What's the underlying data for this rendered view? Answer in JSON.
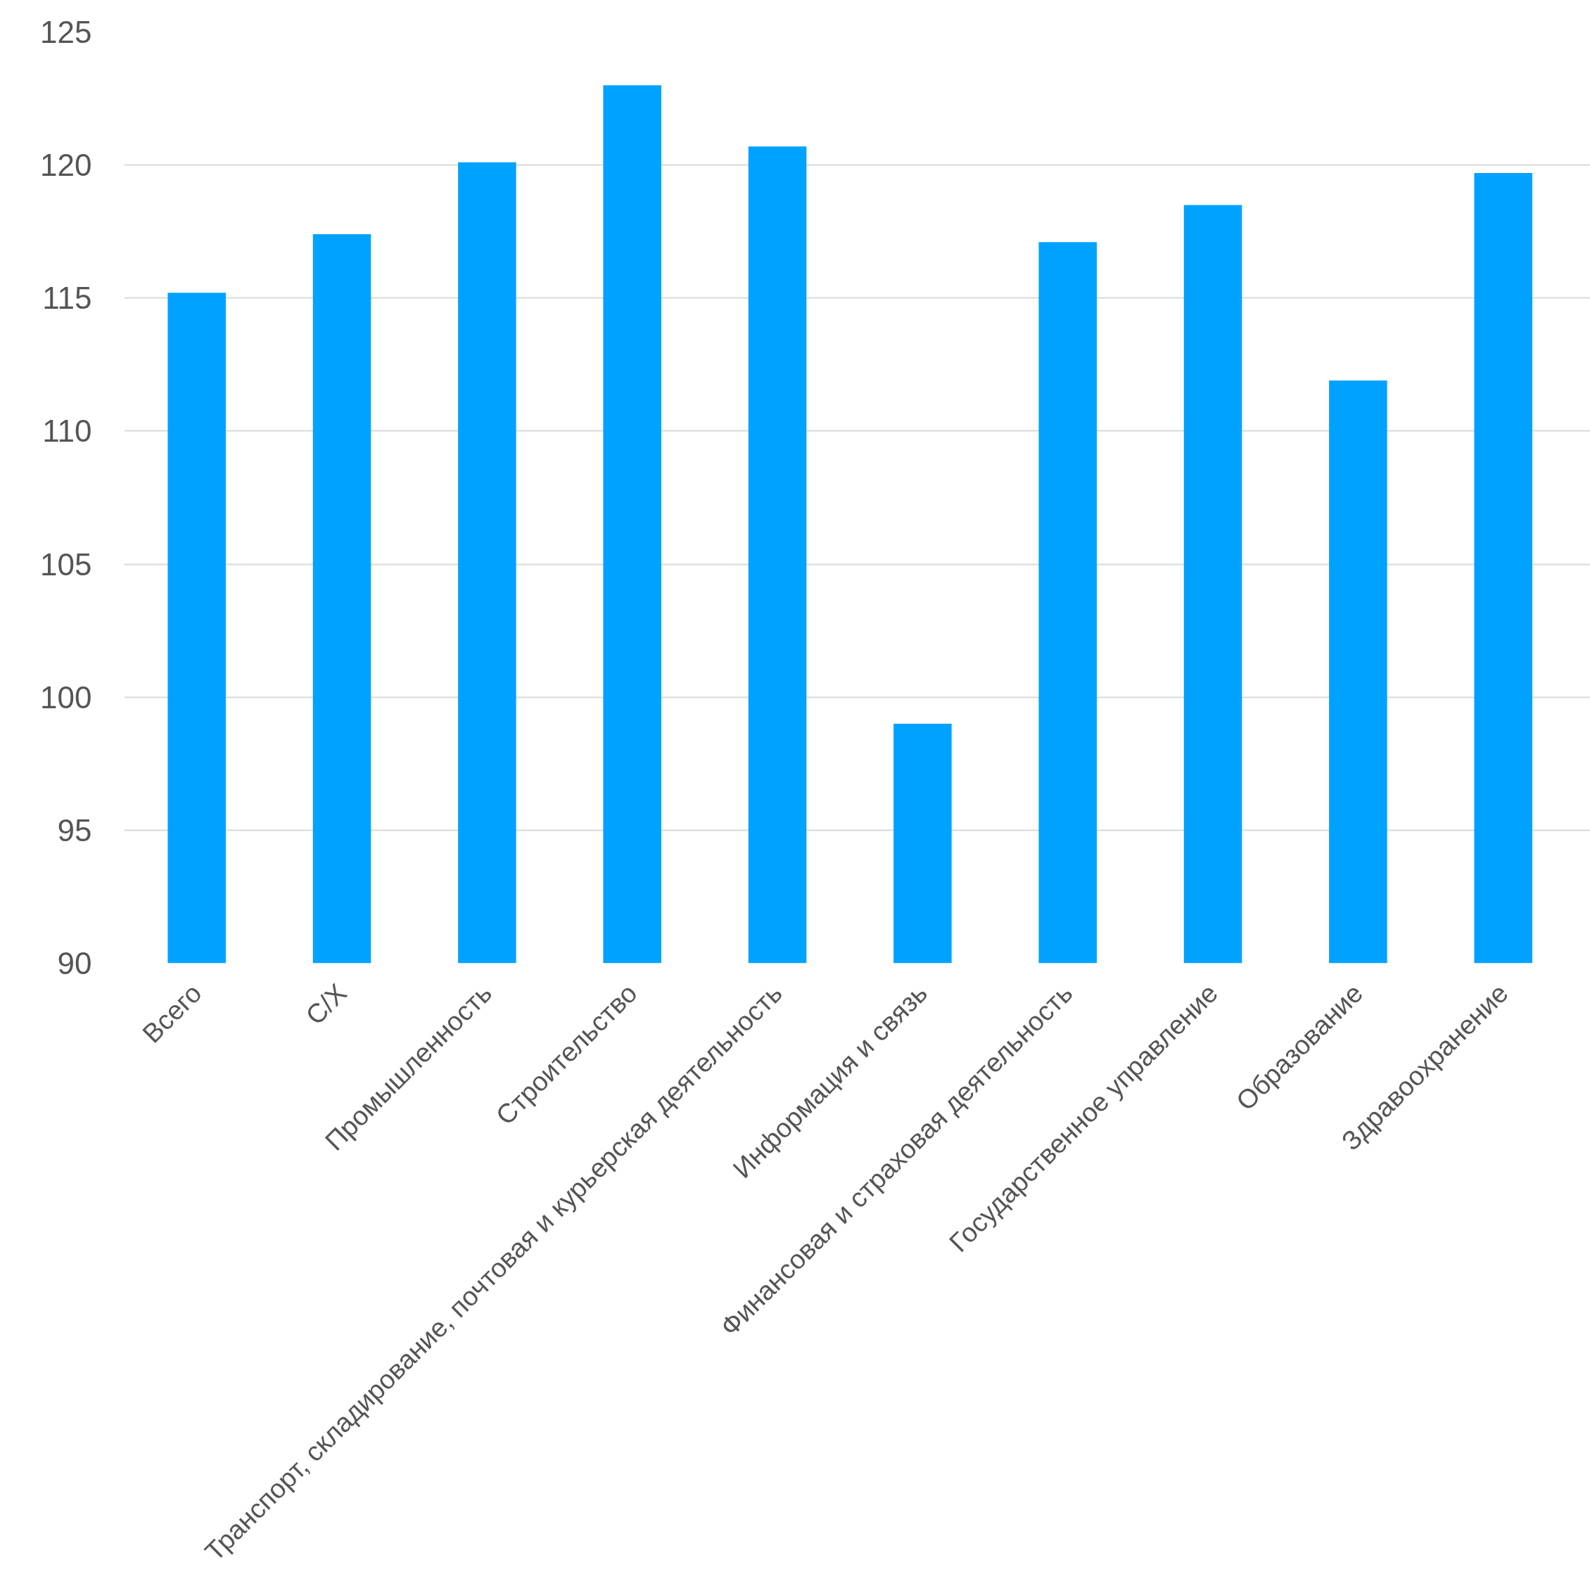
{
  "chart_data": {
    "type": "bar",
    "categories": [
      "Всего",
      "С/Х",
      "Промышленность",
      "Строительство",
      "Транспорт, складирование, почтовая и курьерская деятельность",
      "Информация и связь",
      "Финансовая и страховая деятельность",
      "Государственное управление",
      "Образование",
      "Здравоохранение"
    ],
    "values": [
      115.2,
      117.4,
      120.1,
      123.0,
      120.7,
      99.0,
      117.1,
      118.5,
      111.9,
      119.7
    ],
    "color": "#00a2ff",
    "ylim": [
      90,
      125
    ],
    "yticks": [
      90,
      95,
      100,
      105,
      110,
      115,
      120,
      125
    ],
    "grid": "y"
  }
}
